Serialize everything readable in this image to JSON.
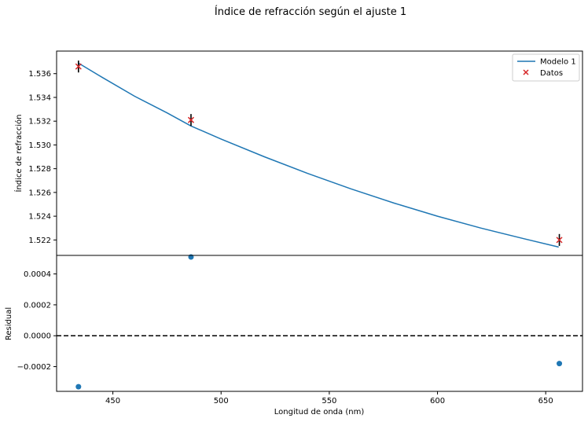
{
  "title": "Índice de refracción según el ajuste 1",
  "chart_data": [
    {
      "type": "line",
      "panel": "top",
      "ylabel": "Índice de refracción",
      "xlim": [
        424,
        667
      ],
      "ylim": [
        1.5207,
        1.5379
      ],
      "yticks": [
        1.522,
        1.524,
        1.526,
        1.528,
        1.53,
        1.532,
        1.534,
        1.536
      ],
      "ytick_labels": [
        "1.522",
        "1.524",
        "1.526",
        "1.528",
        "1.530",
        "1.532",
        "1.534",
        "1.536"
      ],
      "legend_position": "top-right",
      "model": {
        "name": "Modelo 1",
        "color": "#1f77b4",
        "x": [
          434,
          445,
          460,
          475,
          486,
          500,
          520,
          540,
          560,
          580,
          600,
          620,
          640,
          656
        ],
        "y": [
          1.5369,
          1.5357,
          1.5341,
          1.5327,
          1.5316,
          1.5305,
          1.529,
          1.5276,
          1.5263,
          1.5251,
          1.524,
          1.523,
          1.5221,
          1.5214
        ]
      },
      "data": {
        "name": "Datos",
        "color": "#d62728",
        "marker": "x",
        "points": [
          {
            "x": 434.1,
            "y": 1.5366,
            "yerr": 0.0005
          },
          {
            "x": 486.1,
            "y": 1.5321,
            "yerr": 0.0005
          },
          {
            "x": 656.3,
            "y": 1.522,
            "yerr": 0.0005
          }
        ]
      }
    },
    {
      "type": "scatter",
      "panel": "bottom",
      "xlabel": "Longitud de onda (nm)",
      "ylabel": "Residual",
      "xlim": [
        424,
        667
      ],
      "ylim": [
        -0.00036,
        0.00052
      ],
      "xticks": [
        450,
        500,
        550,
        600,
        650
      ],
      "xtick_labels": [
        "450",
        "500",
        "550",
        "600",
        "650"
      ],
      "yticks": [
        -0.0002,
        0.0,
        0.0002,
        0.0004
      ],
      "ytick_labels": [
        "−0.0002",
        "0.0000",
        "0.0002",
        "0.0004"
      ],
      "reference_line": {
        "y": 0.0,
        "style": "dashed",
        "color": "#000000"
      },
      "color": "#1f77b4",
      "points": [
        {
          "x": 434.1,
          "y": -0.00033
        },
        {
          "x": 486.1,
          "y": 0.00051
        },
        {
          "x": 656.3,
          "y": -0.00018
        }
      ]
    }
  ]
}
